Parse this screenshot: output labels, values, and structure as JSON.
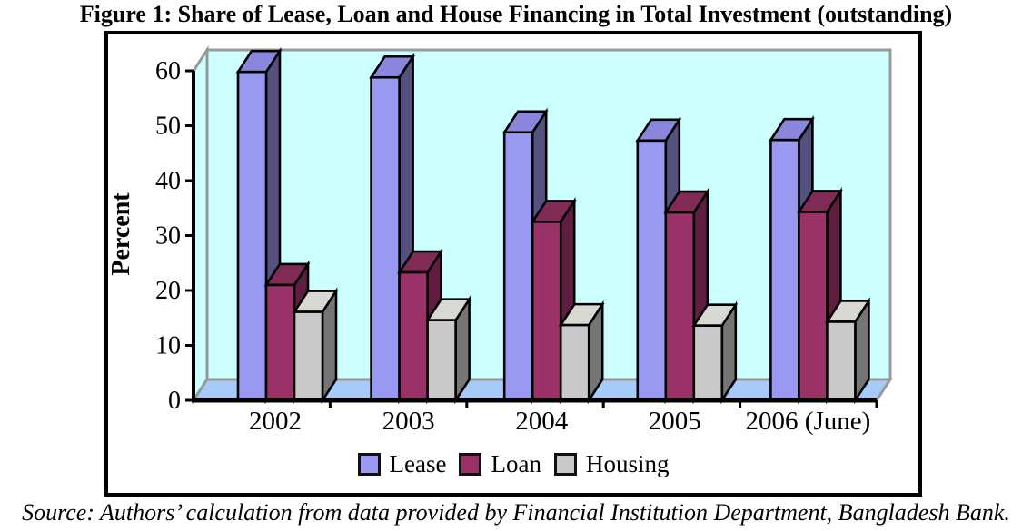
{
  "title": "Figure 1: Share of Lease, Loan and House Financing in Total Investment (outstanding)",
  "source": "Source: Authors’ calculation from data provided by Financial Institution Department, Bangladesh Bank.",
  "chart_data": {
    "type": "bar",
    "projection": "3d",
    "title": "Figure 1: Share of Lease, Loan and House Financing in Total Investment (outstanding)",
    "categories": [
      "2002",
      "2003",
      "2004",
      "2005",
      "2006 (June)"
    ],
    "series": [
      {
        "name": "Lease",
        "values": [
          59.8,
          58.8,
          48.8,
          47.3,
          47.4
        ],
        "color": "#9999f2",
        "color_top": "#8a86dd",
        "color_side": "#55517f"
      },
      {
        "name": "Loan",
        "values": [
          21.0,
          23.3,
          32.5,
          34.2,
          34.3
        ],
        "color": "#9a3267",
        "color_top": "#822a56",
        "color_side": "#5f1e40"
      },
      {
        "name": "Housing",
        "values": [
          16.1,
          14.6,
          13.7,
          13.6,
          14.3
        ],
        "color": "#c9c9c9",
        "color_top": "#d9d9d4",
        "color_side": "#757575"
      }
    ],
    "xlabel": "",
    "ylabel": "Percent",
    "ylim": [
      0,
      60
    ],
    "yticks": [
      0,
      10,
      20,
      30,
      40,
      50,
      60
    ],
    "grid": false,
    "legend_position": "bottom",
    "wall_color": "#ccffff",
    "floor_color": "#a7cbf8",
    "wall_edge_color": "#999999",
    "axis_color": "#000000"
  }
}
